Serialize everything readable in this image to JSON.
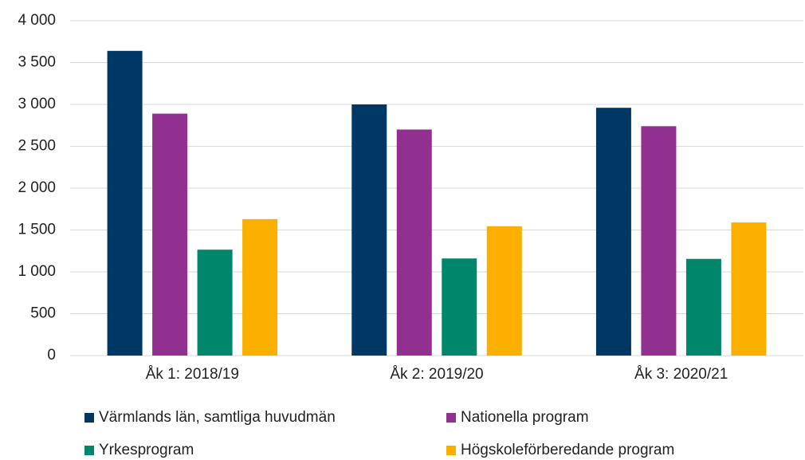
{
  "chart_data": {
    "type": "bar",
    "categories": [
      "Åk 1: 2018/19",
      "Åk 2: 2019/20",
      "Åk 3: 2020/21"
    ],
    "series": [
      {
        "name": "Värmlands län, samtliga huvudmän",
        "color": "#003865",
        "values": [
          3640,
          3000,
          2960
        ]
      },
      {
        "name": "Nationella program",
        "color": "#92308f",
        "values": [
          2890,
          2700,
          2740
        ]
      },
      {
        "name": "Yrkesprogram",
        "color": "#00866b",
        "values": [
          1265,
          1160,
          1155
        ]
      },
      {
        "name": "Högskoleförberedande program",
        "color": "#fbb000",
        "values": [
          1630,
          1545,
          1590
        ]
      }
    ],
    "ylim": [
      0,
      4000
    ],
    "yticks": [
      0,
      500,
      {
        "value": 1000,
        "label": "1 000"
      },
      {
        "value": 1500,
        "label": "1 500"
      },
      {
        "value": 2000,
        "label": "2 000"
      },
      {
        "value": 2500,
        "label": "2 500"
      },
      {
        "value": 3000,
        "label": "3 000"
      },
      {
        "value": 3500,
        "label": "3 500"
      },
      {
        "value": 4000,
        "label": "4 000"
      }
    ],
    "grid": true,
    "legend": "bottom"
  }
}
